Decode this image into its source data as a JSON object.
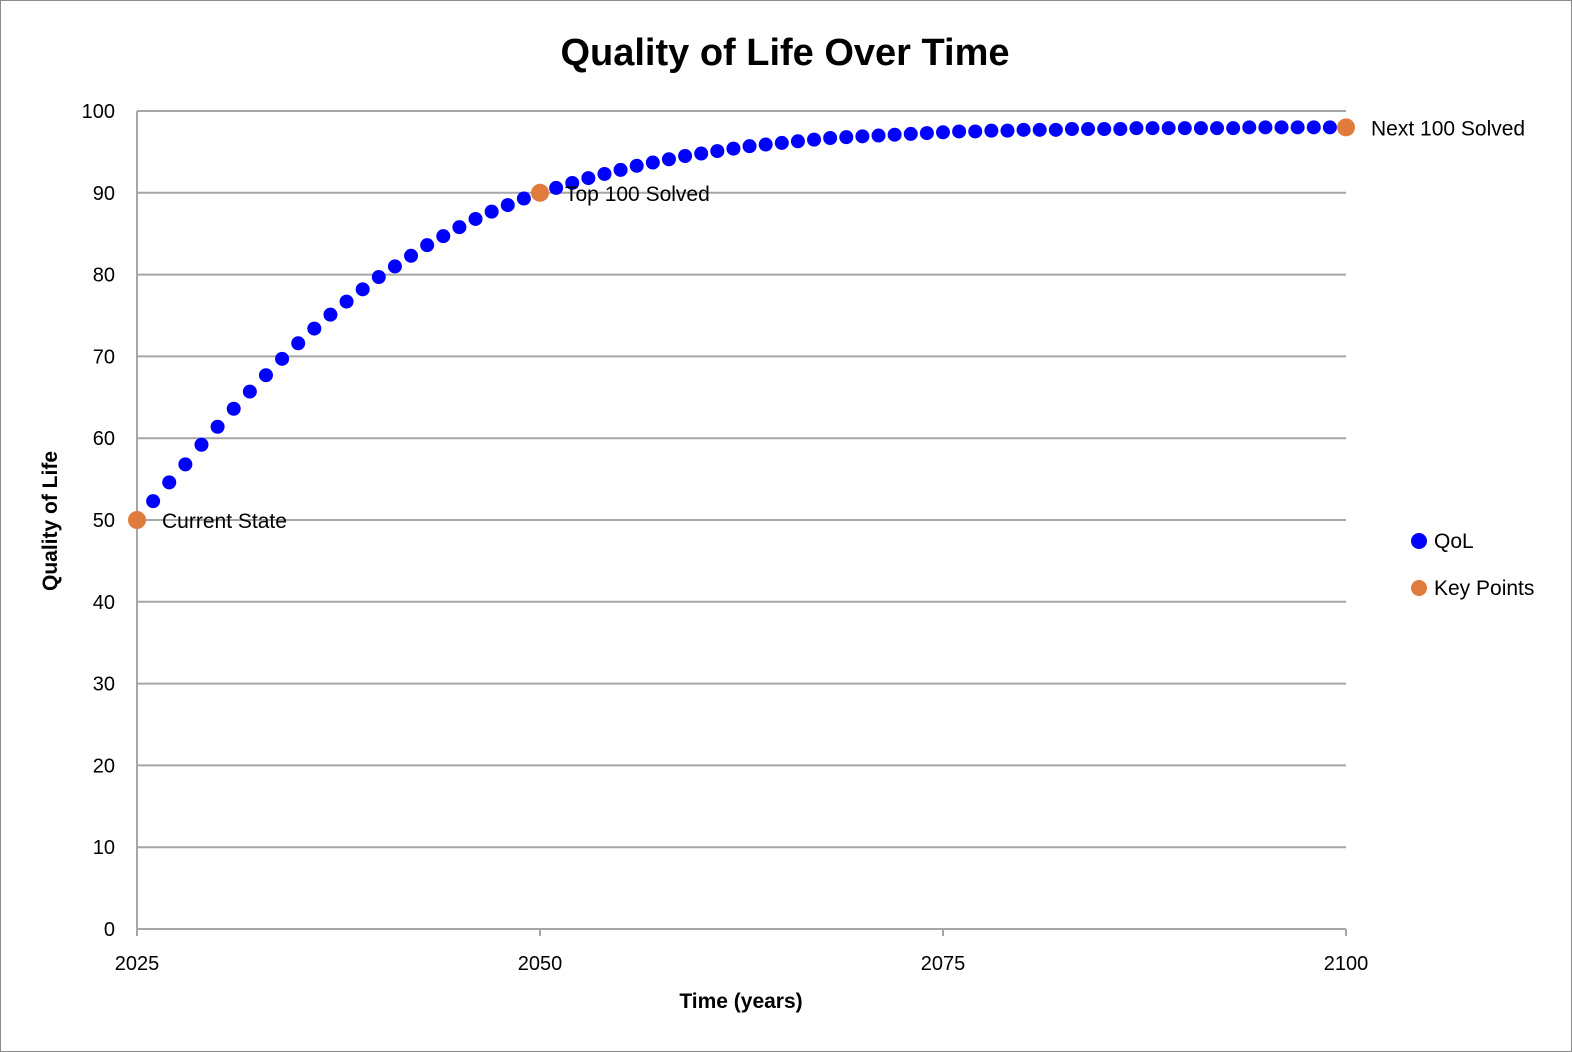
{
  "chart_data": {
    "type": "scatter",
    "title": "Quality of Life Over Time",
    "xlabel": "Time (years)",
    "ylabel": "Quality of Life",
    "xlim": [
      2025,
      2100
    ],
    "ylim": [
      0,
      100
    ],
    "x_ticks": [
      "2025",
      "2050",
      "2075",
      "2100"
    ],
    "y_ticks": [
      "0",
      "10",
      "20",
      "30",
      "40",
      "50",
      "60",
      "70",
      "80",
      "90",
      "100"
    ],
    "grid": true,
    "legend_position": "right",
    "series": [
      {
        "name": "QoL",
        "color": "#0000ff",
        "x": [
          2026,
          2027,
          2028,
          2029,
          2030,
          2031,
          2032,
          2033,
          2034,
          2035,
          2036,
          2037,
          2038,
          2039,
          2040,
          2041,
          2042,
          2043,
          2044,
          2045,
          2046,
          2047,
          2048,
          2049,
          2050,
          2051,
          2052,
          2053,
          2054,
          2055,
          2056,
          2057,
          2058,
          2059,
          2060,
          2061,
          2062,
          2063,
          2064,
          2065,
          2066,
          2067,
          2068,
          2069,
          2070,
          2071,
          2072,
          2073,
          2074,
          2075,
          2076,
          2077,
          2078,
          2079,
          2080,
          2081,
          2082,
          2083,
          2084,
          2085,
          2086,
          2087,
          2088,
          2089,
          2090,
          2091,
          2092,
          2093,
          2094,
          2095,
          2096,
          2097,
          2098,
          2099
        ],
        "y": [
          52.3,
          54.6,
          56.8,
          59.2,
          61.4,
          63.6,
          65.7,
          67.7,
          69.7,
          71.6,
          73.4,
          75.1,
          76.7,
          78.2,
          79.7,
          81.0,
          82.3,
          83.6,
          84.7,
          85.8,
          86.8,
          87.7,
          88.5,
          89.3,
          90.0,
          90.6,
          91.2,
          91.8,
          92.3,
          92.8,
          93.3,
          93.7,
          94.1,
          94.5,
          94.8,
          95.1,
          95.4,
          95.7,
          95.9,
          96.1,
          96.3,
          96.5,
          96.7,
          96.8,
          96.9,
          97.0,
          97.1,
          97.2,
          97.3,
          97.4,
          97.5,
          97.5,
          97.6,
          97.6,
          97.7,
          97.7,
          97.7,
          97.8,
          97.8,
          97.8,
          97.8,
          97.9,
          97.9,
          97.9,
          97.9,
          97.9,
          97.9,
          97.9,
          98.0,
          98.0,
          98.0,
          98.0,
          98.0,
          98.0
        ]
      },
      {
        "name": "Key Points",
        "color": "#e07b3c",
        "x": [
          2025,
          2050,
          2100
        ],
        "y": [
          50,
          90,
          98
        ],
        "labels": [
          "Current State",
          "Top 100 Solved",
          "Next 100 Solved"
        ]
      }
    ]
  }
}
